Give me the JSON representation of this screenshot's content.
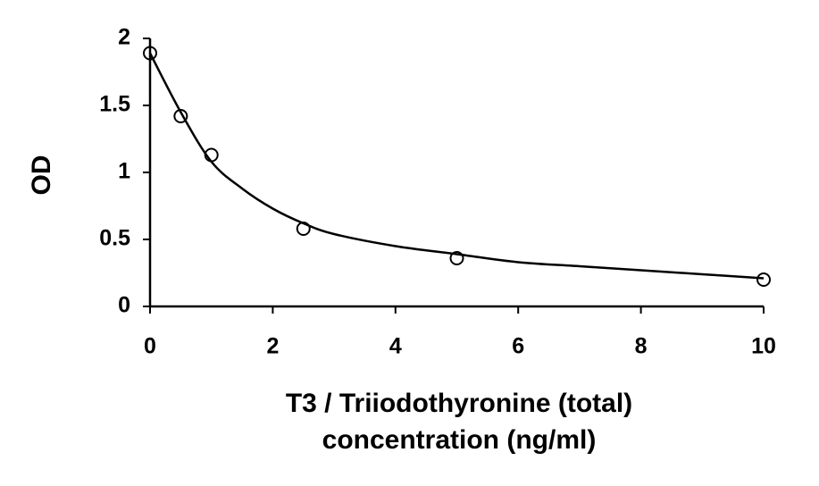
{
  "chart_data": {
    "type": "scatter",
    "xlabel": [
      "T3 / Triiodothyronine (total)",
      "concentration (ng/ml)"
    ],
    "ylabel": "OD",
    "xlim": [
      0,
      10
    ],
    "ylim": [
      0,
      2
    ],
    "xticks": [
      0,
      2,
      4,
      6,
      8,
      10
    ],
    "yticks": [
      0,
      0.5,
      1,
      1.5,
      2
    ],
    "color": "#000000",
    "series": [
      {
        "type": "scatter",
        "x": [
          0,
          0.5,
          1,
          2.5,
          5,
          10
        ],
        "values": [
          1.89,
          1.42,
          1.13,
          0.58,
          0.36,
          0.2
        ]
      },
      {
        "type": "line",
        "x": [
          0,
          0.5,
          1,
          1.5,
          2,
          2.5,
          3,
          4,
          5,
          6,
          7,
          8,
          9,
          10
        ],
        "values": [
          1.89,
          1.45,
          1.08,
          0.88,
          0.73,
          0.62,
          0.54,
          0.45,
          0.39,
          0.33,
          0.3,
          0.27,
          0.24,
          0.21
        ]
      }
    ]
  }
}
